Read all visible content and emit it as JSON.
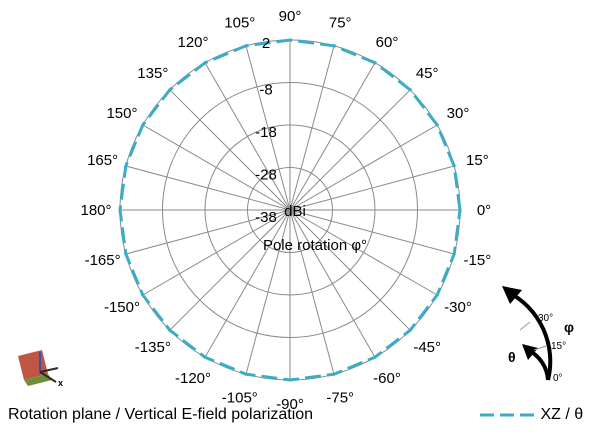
{
  "caption": "Rotation plane / Vertical E-field polarization",
  "legend": {
    "label": "XZ / θ",
    "color": "#3aacc8"
  },
  "rotation_indicator": {
    "phi_symbol": "φ",
    "theta_symbol": "θ",
    "ticks": [
      "30°",
      "15°",
      "0°"
    ]
  },
  "chart_data": {
    "type": "polar",
    "title": "",
    "radial_unit_label": "dBi",
    "angular_label": "Pole rotation φ°",
    "radial_ticks": [
      2,
      -8,
      -18,
      -28,
      -38
    ],
    "radial_range": [
      -38,
      2
    ],
    "angular_ticks": [
      {
        "angle": 0,
        "label": "0°"
      },
      {
        "angle": 15,
        "label": "15°"
      },
      {
        "angle": 30,
        "label": "30°"
      },
      {
        "angle": 45,
        "label": "45°"
      },
      {
        "angle": 60,
        "label": "60°"
      },
      {
        "angle": 75,
        "label": "75°"
      },
      {
        "angle": 90,
        "label": "90°"
      },
      {
        "angle": 105,
        "label": "105°"
      },
      {
        "angle": 120,
        "label": "120°"
      },
      {
        "angle": 135,
        "label": "135°"
      },
      {
        "angle": 150,
        "label": "150°"
      },
      {
        "angle": 165,
        "label": "165°"
      },
      {
        "angle": 180,
        "label": "180°"
      },
      {
        "angle": -165,
        "label": "-165°"
      },
      {
        "angle": -150,
        "label": "-150°"
      },
      {
        "angle": -135,
        "label": "-135°"
      },
      {
        "angle": -120,
        "label": "-120°"
      },
      {
        "angle": -105,
        "label": "-105°"
      },
      {
        "angle": -90,
        "label": "-90°"
      },
      {
        "angle": -75,
        "label": "-75°"
      },
      {
        "angle": -60,
        "label": "-60°"
      },
      {
        "angle": -45,
        "label": "-45°"
      },
      {
        "angle": -30,
        "label": "-30°"
      },
      {
        "angle": -15,
        "label": "-15°"
      }
    ],
    "grid": true,
    "legend_position": "bottom-right",
    "series": [
      {
        "name": "XZ / θ",
        "color": "#3aacc8",
        "style": "dashed",
        "angles": [
          0,
          15,
          30,
          45,
          60,
          75,
          90,
          105,
          120,
          135,
          150,
          165,
          180,
          -165,
          -150,
          -135,
          -120,
          -105,
          -90,
          -75,
          -60,
          -45,
          -30,
          -15
        ],
        "values": [
          2,
          2,
          2,
          2,
          2,
          2,
          2,
          2,
          2,
          2,
          2,
          2,
          2,
          2,
          2,
          2,
          2,
          2,
          2,
          2,
          2,
          2,
          2,
          2
        ]
      }
    ]
  }
}
